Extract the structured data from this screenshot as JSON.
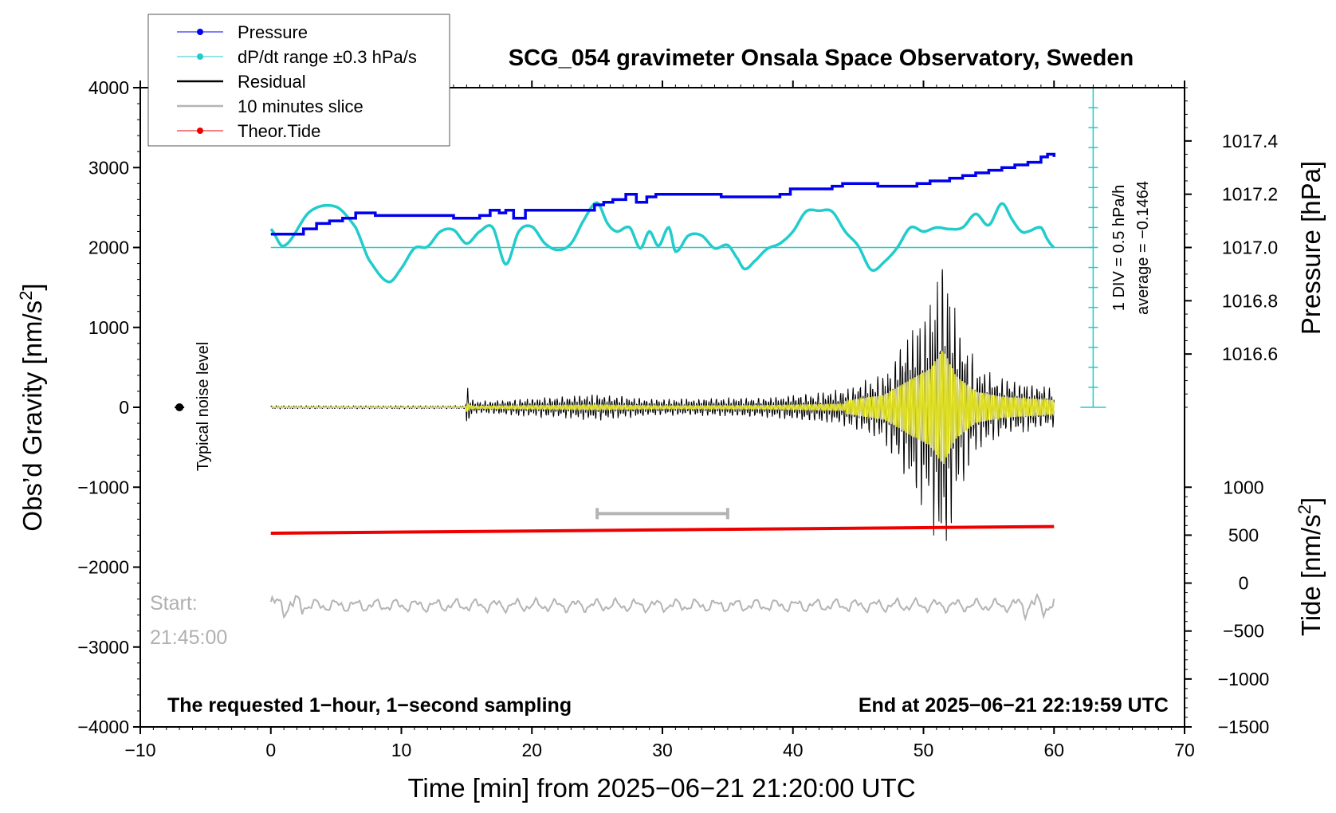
{
  "chart_data": {
    "type": "line",
    "title": "SCG_054 gravimeter Onsala Space Observatory, Sweden",
    "xlabel": "Time [min] from 2025−06−21 21:20:00 UTC",
    "ylabel_left_main": "Obs’d Gravity [nm/s",
    "ylabel_left_sup": "2",
    "ylabel_left_end": "]",
    "ylabel_right_top": "Pressure [hPa]",
    "ylabel_right_bottom_main": "Tide [nm/s",
    "ylabel_right_bottom_sup": "2",
    "ylabel_right_bottom_end": "]",
    "xlim": [
      -10,
      70
    ],
    "ylim": [
      -4000,
      4000
    ],
    "x_ticks": [
      -10,
      0,
      10,
      20,
      30,
      40,
      50,
      60,
      70
    ],
    "x_tick_labels": [
      "−10",
      "0",
      "10",
      "20",
      "30",
      "40",
      "50",
      "60",
      "70"
    ],
    "y_ticks": [
      -4000,
      -3000,
      -2000,
      -1000,
      0,
      1000,
      2000,
      3000,
      4000
    ],
    "y_tick_labels": [
      "−4000",
      "−3000",
      "−2000",
      "−1000",
      "0",
      "1000",
      "2000",
      "3000",
      "4000"
    ],
    "pressure_axis": {
      "ticks": [
        1016.6,
        1016.8,
        1017.0,
        1017.2,
        1017.4
      ],
      "tick_labels": [
        "1016.6",
        "1016.8",
        "1017.0",
        "1017.2",
        "1017.4"
      ],
      "hPa_at_gravity_0": 1016.4,
      "hPa_at_gravity_4000": 1017.6
    },
    "tide_axis": {
      "ticks": [
        -1500,
        -1000,
        -500,
        0,
        500,
        1000
      ],
      "tick_labels": [
        "−1500",
        "−1000",
        "−500",
        "0",
        "500",
        "1000"
      ],
      "tide_at_gravity_minus4000": -1500,
      "tide_at_gravity_minus1000": 1000
    },
    "legend": {
      "placement": "top-left",
      "entries": [
        {
          "label": "Pressure",
          "color": "#0000ee",
          "marker": true
        },
        {
          "label": "dP/dt range ±0.3 hPa/s",
          "color": "#22cccc",
          "marker": true
        },
        {
          "label": "Residual",
          "color": "#000000",
          "marker": false
        },
        {
          "label": "10 minutes slice",
          "color": "#b4b4b4",
          "marker": false
        },
        {
          "label": "Theor.Tide",
          "color": "#ee0000",
          "marker": true
        }
      ]
    },
    "series": [
      {
        "name": "Pressure",
        "color": "#0000ee",
        "x": [
          0,
          2.5,
          3.5,
          4.5,
          5.5,
          6.5,
          8,
          10,
          14,
          16,
          16.8,
          17.5,
          18,
          18.6,
          19.5,
          22,
          23,
          24.8,
          25.5,
          26.2,
          27.2,
          28,
          28.8,
          29.5,
          30,
          32,
          34.5,
          36,
          37,
          39,
          39.8,
          42,
          43,
          43.8,
          45,
          46.5,
          48,
          49.5,
          50.5,
          52,
          53,
          54,
          55,
          56,
          57,
          58,
          59,
          59.5,
          60
        ],
        "values": [
          1017.05,
          1017.07,
          1017.09,
          1017.1,
          1017.11,
          1017.13,
          1017.12,
          1017.12,
          1017.11,
          1017.12,
          1017.14,
          1017.13,
          1017.14,
          1017.11,
          1017.14,
          1017.14,
          1017.14,
          1017.16,
          1017.17,
          1017.18,
          1017.2,
          1017.17,
          1017.19,
          1017.2,
          1017.2,
          1017.2,
          1017.19,
          1017.19,
          1017.19,
          1017.2,
          1017.22,
          1017.22,
          1017.23,
          1017.24,
          1017.24,
          1017.23,
          1017.23,
          1017.24,
          1017.25,
          1017.26,
          1017.27,
          1017.28,
          1017.29,
          1017.3,
          1017.31,
          1017.32,
          1017.34,
          1017.35,
          1017.34
        ]
      },
      {
        "name": "dP/dt",
        "color": "#22cccc",
        "x": [
          0,
          1,
          3,
          5,
          6.5,
          7.5,
          9,
          10,
          11,
          12,
          13,
          14,
          15,
          16,
          17,
          18,
          19,
          20,
          21,
          22,
          23,
          24,
          25,
          25.8,
          26.5,
          27.5,
          28.3,
          29,
          29.7,
          30.5,
          31,
          32,
          33,
          34,
          35,
          35.8,
          36.3,
          37,
          38,
          39,
          40,
          41,
          42,
          43,
          44,
          45,
          46,
          47,
          48,
          49,
          50,
          51,
          52,
          53,
          54,
          55,
          56,
          56.8,
          57.5,
          58,
          59,
          59.5,
          60
        ],
        "values": [
          2230,
          2020,
          2450,
          2510,
          2250,
          1850,
          1570,
          1740,
          1990,
          2010,
          2200,
          2220,
          2050,
          2200,
          2250,
          1790,
          2200,
          2260,
          2050,
          1970,
          2050,
          2350,
          2560,
          2300,
          2200,
          2250,
          1990,
          2200,
          2020,
          2250,
          1950,
          2150,
          2150,
          1990,
          2030,
          1850,
          1730,
          1820,
          1980,
          2050,
          2200,
          2450,
          2460,
          2450,
          2200,
          2020,
          1720,
          1820,
          2000,
          2250,
          2200,
          2250,
          2230,
          2250,
          2420,
          2280,
          2550,
          2350,
          2200,
          2200,
          2250,
          2100,
          2000
        ]
      },
      {
        "name": "Theor.Tide",
        "color": "#ee0000",
        "x": [
          0,
          60
        ],
        "values": [
          520,
          590
        ]
      }
    ],
    "dpdt_ruler": {
      "x": 63,
      "y_from": 0,
      "y_to": 4000,
      "label_div": "1 DIV = 0.5 hPa/h",
      "label_avg": "average = −0.1464"
    },
    "residual": {
      "name": "Residual",
      "color": "#000000",
      "filtered_color": "#dddd22",
      "x_range": [
        0,
        60
      ],
      "envelope": {
        "x": [
          0,
          14.9,
          15,
          15.3,
          15.6,
          25,
          30,
          38,
          44,
          47,
          49,
          50.5,
          51.5,
          52.5,
          54,
          56,
          58,
          60
        ],
        "values": [
          15,
          15,
          260,
          90,
          60,
          130,
          80,
          100,
          180,
          350,
          800,
          1100,
          1650,
          900,
          450,
          300,
          250,
          200
        ]
      }
    },
    "slice_bracket": {
      "x_from": 25,
      "x_to": 35,
      "y": -1330
    },
    "ten_minute_slice": {
      "x_range": [
        0,
        60
      ],
      "y_center": -2480,
      "amplitude": 90
    },
    "noise_marker": {
      "x": -7,
      "y": 0,
      "label": "Typical noise level"
    },
    "annotations": {
      "bottom_left": "The requested 1−hour, 1−second sampling",
      "bottom_right": "End at 2025−06−21 22:19:59 UTC",
      "start_label": "Start:",
      "start_time": "21:45:00"
    }
  }
}
